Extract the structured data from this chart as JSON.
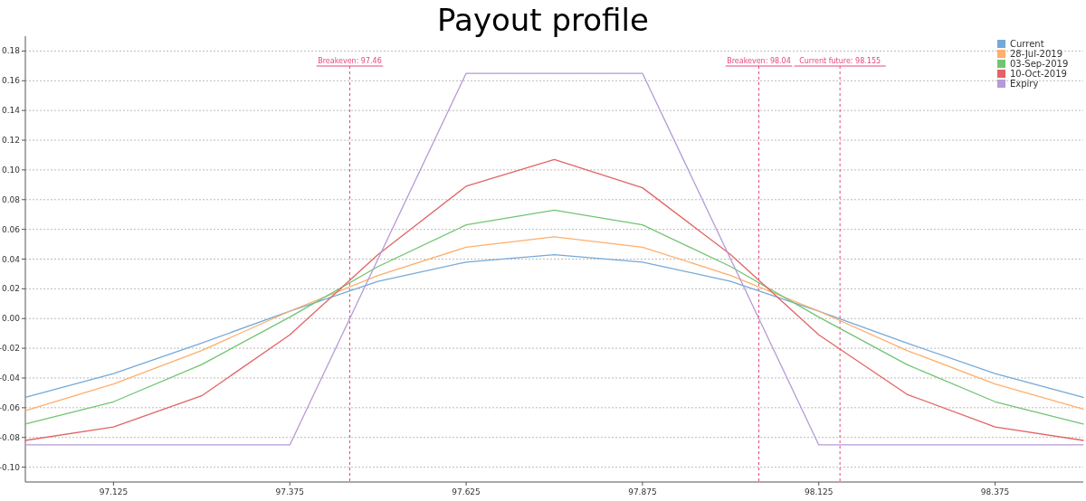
{
  "chart_data": {
    "type": "line",
    "title": "Payout profile",
    "x": [
      97.0,
      97.125,
      97.25,
      97.375,
      97.5,
      97.625,
      97.75,
      97.875,
      98.0,
      98.125,
      98.25,
      98.375,
      98.5
    ],
    "series": [
      {
        "name": "Current",
        "color": "#74a9d8",
        "values": [
          -0.053,
          -0.037,
          -0.0165,
          0.005,
          0.025,
          0.038,
          0.043,
          0.038,
          0.025,
          0.005,
          -0.0165,
          -0.037,
          -0.053
        ]
      },
      {
        "name": "28-Jul-2019",
        "color": "#ffae6b",
        "values": [
          -0.062,
          -0.044,
          -0.0215,
          0.005,
          0.029,
          0.048,
          0.055,
          0.048,
          0.029,
          0.005,
          -0.0215,
          -0.044,
          -0.061
        ]
      },
      {
        "name": "03-Sep-2019",
        "color": "#72c472",
        "values": [
          -0.071,
          -0.056,
          -0.031,
          0.001,
          0.035,
          0.063,
          0.073,
          0.063,
          0.035,
          0.001,
          -0.031,
          -0.056,
          -0.071
        ]
      },
      {
        "name": "10-Oct-2019",
        "color": "#e26464",
        "values": [
          -0.082,
          -0.073,
          -0.052,
          -0.011,
          0.043,
          0.089,
          0.107,
          0.088,
          0.043,
          -0.011,
          -0.051,
          -0.073,
          -0.082
        ]
      },
      {
        "name": "Expiry",
        "color": "#b59ad6",
        "values": [
          -0.085,
          -0.085,
          -0.085,
          -0.085,
          0.04,
          0.165,
          0.165,
          0.165,
          0.04,
          -0.085,
          -0.085,
          -0.085,
          -0.085
        ]
      }
    ],
    "xlim": [
      97.0,
      98.5
    ],
    "xticks": [
      97.125,
      97.375,
      97.625,
      97.875,
      98.125,
      98.375
    ],
    "ylim": [
      -0.11,
      0.19
    ],
    "yticks": [
      {
        "value": -0.1,
        "label": "-0.10"
      },
      {
        "value": -0.08,
        "label": "-0.08"
      },
      {
        "value": -0.06,
        "label": "-0.06"
      },
      {
        "value": -0.04,
        "label": "-0.04"
      },
      {
        "value": -0.02,
        "label": "-0.02"
      },
      {
        "value": 0,
        "label": "0.00"
      },
      {
        "value": 0.02,
        "label": "0.02"
      },
      {
        "value": 0.04,
        "label": "0.04"
      },
      {
        "value": 0.06,
        "label": "0.06"
      },
      {
        "value": 0.08,
        "label": "0.08"
      },
      {
        "value": 0.1,
        "label": "0.10"
      },
      {
        "value": 0.12,
        "label": "0.12"
      },
      {
        "value": 0.14,
        "label": "0.14"
      },
      {
        "value": 0.16,
        "label": "0.16"
      },
      {
        "value": 0.18,
        "label": "0.18"
      }
    ],
    "ref_lines": [
      {
        "axis": "x",
        "value": 97.46,
        "label": "Breakeven: 97.46",
        "color": "#e8477a",
        "line_style": "dashed"
      },
      {
        "axis": "x",
        "value": 98.04,
        "label": "Breakeven: 98.04",
        "color": "#e8477a",
        "line_style": "dashed"
      },
      {
        "axis": "x",
        "value": 98.155,
        "label": "Current future: 98.155",
        "color": "#e8477a",
        "line_style": "dashed"
      }
    ],
    "grid": "y",
    "legend": "top right",
    "marker": "none",
    "line_style": "solid"
  }
}
